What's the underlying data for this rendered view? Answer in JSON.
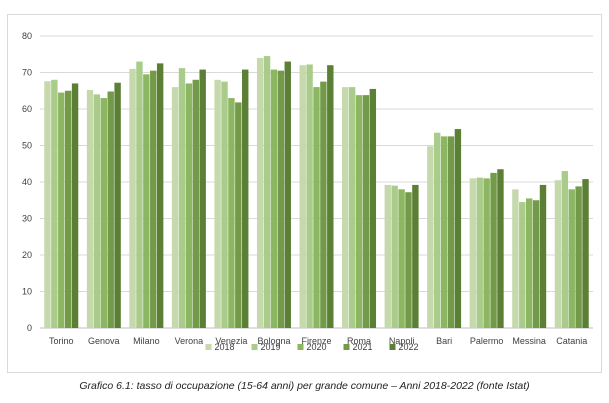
{
  "caption": "Grafico 6.1: tasso di occupazione (15-64 anni) per grande comune – Anni 2018-2022 (fonte Istat)",
  "chart_data": {
    "type": "bar",
    "title": "",
    "xlabel": "",
    "ylabel": "",
    "ylim": [
      0,
      80
    ],
    "yticks": [
      0,
      10,
      20,
      30,
      40,
      50,
      60,
      70,
      80
    ],
    "grid": true,
    "legend_position": "bottom",
    "categories": [
      "Torino",
      "Genova",
      "Milano",
      "Verona",
      "Venezia",
      "Bologna",
      "Firenze",
      "Roma",
      "Napoli",
      "Bari",
      "Palermo",
      "Messina",
      "Catania"
    ],
    "series": [
      {
        "name": "2018",
        "color": "#c6d9ad",
        "values": [
          67.6,
          65.2,
          71.0,
          66.0,
          68.0,
          74.0,
          72.0,
          66.0,
          39.2,
          49.8,
          41.0,
          38.0,
          40.5
        ]
      },
      {
        "name": "2019",
        "color": "#a9cc8a",
        "values": [
          68.0,
          64.0,
          73.0,
          71.2,
          67.5,
          74.5,
          72.2,
          66.0,
          39.0,
          53.5,
          41.2,
          34.5,
          43.0
        ]
      },
      {
        "name": "2020",
        "color": "#8db662",
        "values": [
          64.5,
          63.0,
          69.5,
          67.0,
          63.0,
          70.8,
          66.0,
          63.8,
          38.0,
          52.5,
          41.0,
          35.5,
          38.0
        ]
      },
      {
        "name": "2021",
        "color": "#739a48",
        "values": [
          65.0,
          64.8,
          70.5,
          68.0,
          61.8,
          70.5,
          67.5,
          63.8,
          37.2,
          52.5,
          42.5,
          35.0,
          38.8
        ]
      },
      {
        "name": "2022",
        "color": "#5b7f34",
        "values": [
          67.0,
          67.2,
          72.5,
          70.8,
          70.8,
          73.0,
          72.0,
          65.5,
          39.2,
          54.5,
          43.5,
          39.2,
          40.8
        ]
      }
    ]
  }
}
